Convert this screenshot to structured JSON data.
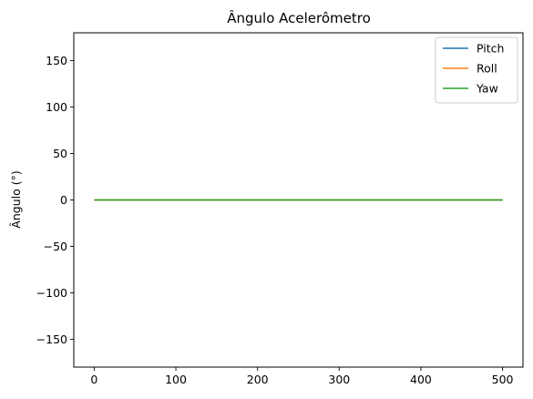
{
  "chart_data": {
    "type": "line",
    "title": "Ângulo Acelerômetro",
    "xlabel": "",
    "ylabel": "Ângulo (°)",
    "xlim": [
      -25,
      525
    ],
    "ylim": [
      -180,
      180
    ],
    "xticks": [
      0,
      100,
      200,
      300,
      400,
      500
    ],
    "yticks": [
      -150,
      -100,
      -50,
      0,
      50,
      100,
      150
    ],
    "grid": false,
    "legend_position": "top-right",
    "series": [
      {
        "name": "Pitch",
        "color": "#1f77b4",
        "x": [
          0,
          500
        ],
        "y": [
          0,
          0
        ]
      },
      {
        "name": "Roll",
        "color": "#ff7f0e",
        "x": [
          0,
          500
        ],
        "y": [
          0,
          0
        ]
      },
      {
        "name": "Yaw",
        "color": "#2ca02c",
        "x": [
          0,
          500
        ],
        "y": [
          0,
          0
        ]
      }
    ]
  }
}
